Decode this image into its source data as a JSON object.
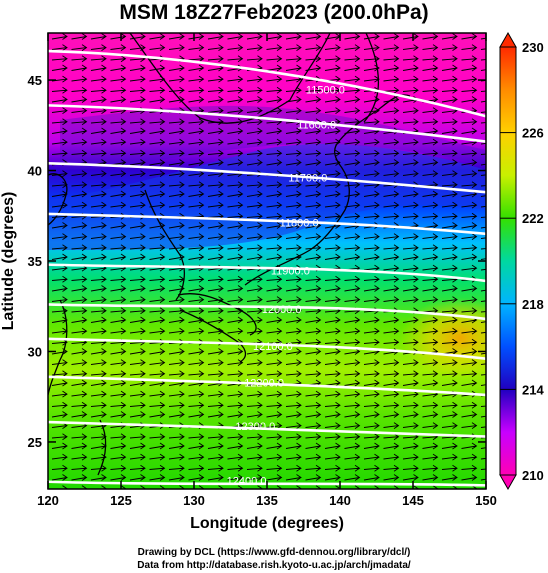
{
  "title": "MSM 18Z27Feb2023 (200.0hPa)",
  "credits": {
    "line1": "Drawing by DCL (https://www.gfd-dennou.org/library/dcl/)",
    "line2": "Data from http://database.rish.kyoto-u.ac.jp/arch/jmadata/"
  },
  "chart_data": {
    "type": "heatmap",
    "description_variable": "temperature field with wind vectors and geopotential height contours",
    "xlabel": "Longitude (degrees)",
    "ylabel": "Latitude  (degrees)",
    "xlim": [
      120,
      150
    ],
    "ylim": [
      22.4,
      47.6
    ],
    "x_ticks": [
      "120",
      "125",
      "130",
      "135",
      "140",
      "145",
      "150"
    ],
    "y_ticks": [
      "25",
      "30",
      "35",
      "40",
      "45"
    ],
    "colorbar": {
      "min": 210,
      "max": 230,
      "tick_labels": [
        "230",
        "226",
        "222",
        "218",
        "214",
        "210"
      ],
      "colors": [
        "#ff2a00",
        "#ff8c00",
        "#ffd000",
        "#c8f000",
        "#34e000",
        "#00d8a0",
        "#00b4ff",
        "#0050ff",
        "#2000c0",
        "#c800ff",
        "#ff00b4"
      ]
    },
    "contours": [
      {
        "label": "11500.0",
        "lat_at_120": 46.6,
        "lat_at_150": 43.0
      },
      {
        "label": "11600.0",
        "lat_at_120": 43.6,
        "lat_at_150": 41.6
      },
      {
        "label": "11700.0",
        "lat_at_120": 40.4,
        "lat_at_150": 38.8
      },
      {
        "label": "11800.0",
        "lat_at_120": 37.6,
        "lat_at_150": 36.5
      },
      {
        "label": "11900.0",
        "lat_at_120": 34.8,
        "lat_at_150": 33.9
      },
      {
        "label": "12000.0",
        "lat_at_120": 32.6,
        "lat_at_150": 31.8
      },
      {
        "label": "12100.0",
        "lat_at_120": 30.7,
        "lat_at_150": 29.6
      },
      {
        "label": "12200.0",
        "lat_at_120": 28.6,
        "lat_at_150": 27.6
      },
      {
        "label": "12300.0",
        "lat_at_120": 26.1,
        "lat_at_150": 25.3
      },
      {
        "label": "12400.0",
        "lat_at_120": 22.8,
        "lat_at_150": 22.6
      }
    ],
    "wind_direction": "westerly (west to east)"
  }
}
